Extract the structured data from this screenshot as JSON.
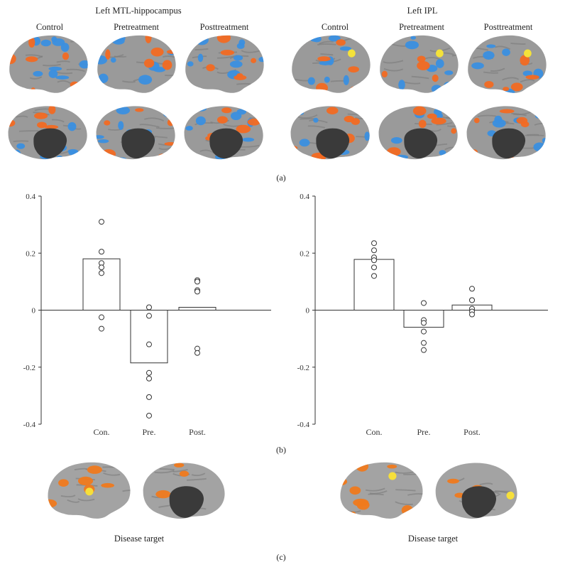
{
  "panel_a": {
    "label": "(a)",
    "groups": [
      {
        "title": "Left MTL-hippocampus",
        "columns": [
          "Control",
          "Pretreatment",
          "Posttreatment"
        ]
      },
      {
        "title": "Left IPL",
        "columns": [
          "Control",
          "Pretreatment",
          "Posttreatment"
        ]
      }
    ],
    "colors": {
      "positive": "#f26a22",
      "negative": "#3a8fe0",
      "peak": "#f4e23a",
      "cortex": "#9a9a9a",
      "medial_wall": "#3a3a3a"
    }
  },
  "panel_b": {
    "label": "(b)"
  },
  "chart_data": [
    {
      "type": "bar",
      "categories": [
        "Con.",
        "Pre.",
        "Post."
      ],
      "values": [
        0.18,
        -0.185,
        0.01
      ],
      "points": [
        [
          0.31,
          0.205,
          0.165,
          0.15,
          0.13,
          -0.025,
          -0.065
        ],
        [
          0.01,
          -0.02,
          -0.12,
          -0.22,
          -0.24,
          -0.305,
          -0.37
        ],
        [
          0.105,
          0.1,
          0.07,
          0.065,
          -0.135,
          -0.15
        ]
      ],
      "yticks": [
        "0.4",
        "0.2",
        "0",
        "-0.2",
        "-0.4"
      ],
      "ylim": [
        -0.4,
        0.4
      ],
      "title": "",
      "xlabel": "",
      "ylabel": ""
    },
    {
      "type": "bar",
      "categories": [
        "Con.",
        "Pre.",
        "Post."
      ],
      "values": [
        0.178,
        -0.06,
        0.018
      ],
      "points": [
        [
          0.235,
          0.21,
          0.185,
          0.175,
          0.15,
          0.12
        ],
        [
          0.025,
          -0.035,
          -0.045,
          -0.075,
          -0.115,
          -0.14
        ],
        [
          0.075,
          0.035,
          0.035,
          0.005,
          -0.005,
          -0.015
        ]
      ],
      "yticks": [
        "0.4",
        "0.2",
        "0",
        "-0.2",
        "-0.4"
      ],
      "ylim": [
        -0.4,
        0.4
      ],
      "title": "",
      "xlabel": "",
      "ylabel": ""
    }
  ],
  "panel_c": {
    "label": "(c)",
    "captions": [
      "Disease target",
      "Disease target"
    ],
    "colors": {
      "cortex": "#a3a3a3",
      "activation": "#f07a1e",
      "peak": "#f6df3a",
      "medial_wall": "#3a3a3a"
    }
  }
}
